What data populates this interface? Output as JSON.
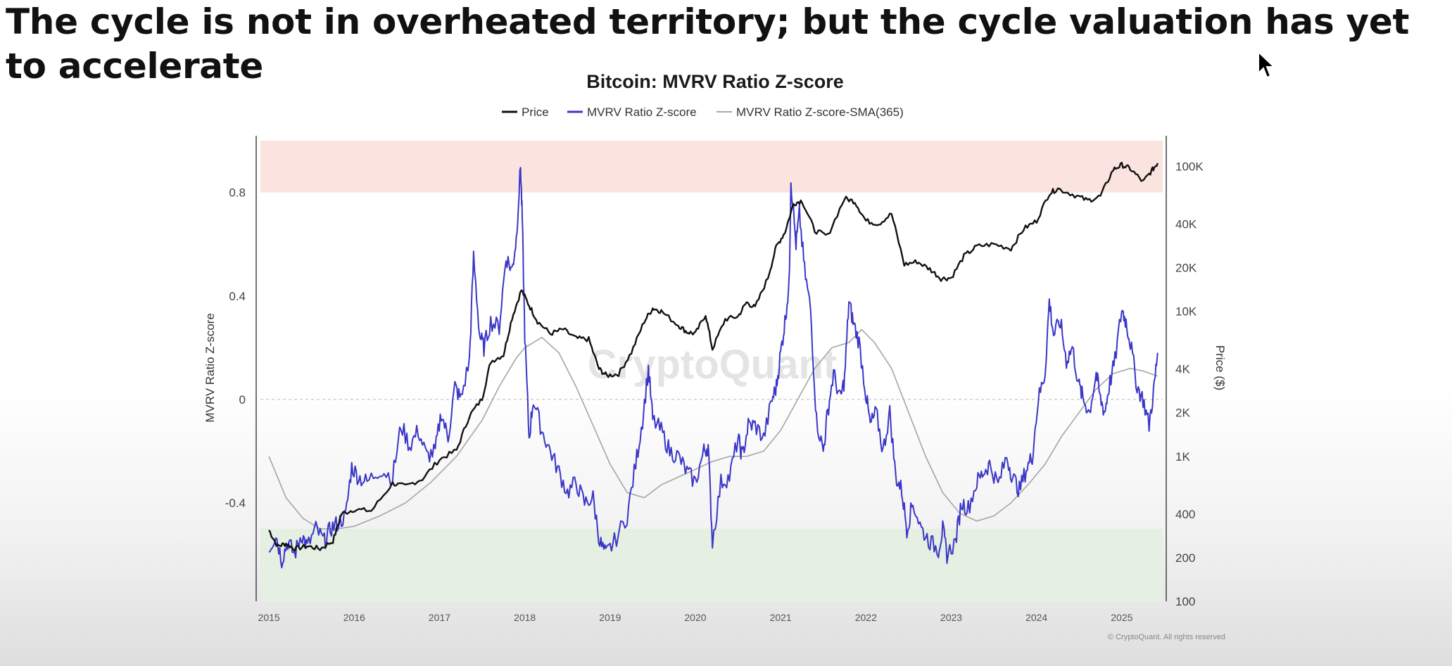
{
  "headline": "The cycle is not in overheated territory; but the cycle valuation has yet to accelerate",
  "cursor_icon": "arrow-pointer-icon",
  "watermark": "CryptoQuant",
  "copyright": "© CryptoQuant. All rights reserved",
  "chart_data": {
    "type": "line",
    "title": "Bitcoin: MVRV Ratio Z-score",
    "ylabel": "MVRV Ratio Z-score",
    "y2label": "Price ($)",
    "ylim": [
      -0.78,
      1.0
    ],
    "y2lim": [
      100,
      150000
    ],
    "y2_scale": "log",
    "xlim": [
      2014.9,
      2025.48
    ],
    "yticks": [
      "0.8",
      "0.4",
      "0",
      "-0.4"
    ],
    "ytick_values": [
      0.8,
      0.4,
      0,
      -0.4
    ],
    "y2ticks": [
      "100K",
      "40K",
      "20K",
      "10K",
      "4K",
      "2K",
      "1K",
      "400",
      "200",
      "100"
    ],
    "y2tick_values": [
      100000,
      40000,
      20000,
      10000,
      4000,
      2000,
      1000,
      400,
      200,
      100
    ],
    "xticks": [
      "2015",
      "2016",
      "2017",
      "2018",
      "2019",
      "2020",
      "2021",
      "2022",
      "2023",
      "2024",
      "2025"
    ],
    "zones": [
      {
        "name": "overheated",
        "from": 0.8,
        "to": 1.0,
        "color": "#fbe3e0"
      },
      {
        "name": "undervalued",
        "from": -0.78,
        "to": -0.5,
        "color": "#e5efe2"
      }
    ],
    "legend_position": "top-center",
    "series": [
      {
        "name": "Price",
        "axis": "right",
        "color": "#111111",
        "x": [
          2015.0,
          2015.1,
          2015.2,
          2015.3,
          2015.45,
          2015.6,
          2015.75,
          2015.85,
          2016.0,
          2016.2,
          2016.45,
          2016.6,
          2016.8,
          2017.0,
          2017.2,
          2017.35,
          2017.5,
          2017.6,
          2017.75,
          2017.85,
          2017.96,
          2018.05,
          2018.15,
          2018.3,
          2018.45,
          2018.6,
          2018.75,
          2018.87,
          2018.96,
          2019.1,
          2019.25,
          2019.4,
          2019.5,
          2019.6,
          2019.8,
          2019.9,
          2020.0,
          2020.12,
          2020.2,
          2020.35,
          2020.5,
          2020.6,
          2020.7,
          2020.85,
          2020.95,
          2021.05,
          2021.15,
          2021.25,
          2021.4,
          2021.55,
          2021.75,
          2021.87,
          2022.0,
          2022.15,
          2022.3,
          2022.45,
          2022.6,
          2022.75,
          2022.88,
          2023.0,
          2023.15,
          2023.3,
          2023.5,
          2023.7,
          2023.85,
          2024.0,
          2024.15,
          2024.25,
          2024.45,
          2024.6,
          2024.75,
          2024.9,
          2025.0,
          2025.1,
          2025.25,
          2025.35,
          2025.42
        ],
        "y": [
          310,
          240,
          250,
          230,
          240,
          230,
          260,
          400,
          430,
          420,
          650,
          620,
          700,
          950,
          1100,
          1900,
          2500,
          4500,
          5000,
          9000,
          14000,
          11000,
          8500,
          7000,
          7500,
          6500,
          6400,
          4000,
          3600,
          3700,
          5200,
          8500,
          10500,
          10000,
          8000,
          7200,
          7000,
          9500,
          5500,
          8800,
          9200,
          11500,
          10600,
          17000,
          28000,
          35000,
          55000,
          58000,
          36000,
          33000,
          60000,
          57000,
          42000,
          40000,
          47000,
          21000,
          22000,
          19500,
          16800,
          17000,
          24000,
          28000,
          29000,
          27000,
          37000,
          42000,
          65000,
          70000,
          63000,
          58000,
          62000,
          95000,
          102000,
          96000,
          78000,
          93000,
          105000
        ]
      },
      {
        "name": "MVRV Ratio Z-score",
        "axis": "left",
        "color": "#3a36c8",
        "x": [
          2015.0,
          2015.08,
          2015.15,
          2015.22,
          2015.3,
          2015.38,
          2015.45,
          2015.55,
          2015.65,
          2015.72,
          2015.8,
          2015.9,
          2015.97,
          2016.05,
          2016.15,
          2016.3,
          2016.45,
          2016.55,
          2016.65,
          2016.75,
          2016.85,
          2016.95,
          2017.02,
          2017.1,
          2017.18,
          2017.25,
          2017.35,
          2017.4,
          2017.47,
          2017.52,
          2017.6,
          2017.7,
          2017.78,
          2017.85,
          2017.9,
          2017.95,
          2017.97,
          2018.0,
          2018.05,
          2018.1,
          2018.2,
          2018.3,
          2018.4,
          2018.5,
          2018.6,
          2018.7,
          2018.8,
          2018.88,
          2018.95,
          2019.05,
          2019.2,
          2019.3,
          2019.38,
          2019.45,
          2019.5,
          2019.6,
          2019.7,
          2019.8,
          2019.9,
          2020.0,
          2020.1,
          2020.15,
          2020.2,
          2020.3,
          2020.4,
          2020.5,
          2020.55,
          2020.62,
          2020.7,
          2020.8,
          2020.9,
          2020.95,
          2021.0,
          2021.05,
          2021.1,
          2021.12,
          2021.18,
          2021.22,
          2021.28,
          2021.35,
          2021.42,
          2021.5,
          2021.55,
          2021.62,
          2021.7,
          2021.75,
          2021.8,
          2021.85,
          2021.92,
          2022.0,
          2022.05,
          2022.12,
          2022.2,
          2022.28,
          2022.35,
          2022.42,
          2022.48,
          2022.55,
          2022.65,
          2022.75,
          2022.85,
          2022.9,
          2022.95,
          2023.05,
          2023.12,
          2023.2,
          2023.3,
          2023.38,
          2023.45,
          2023.55,
          2023.65,
          2023.72,
          2023.8,
          2023.88,
          2023.95,
          2024.02,
          2024.1,
          2024.15,
          2024.2,
          2024.28,
          2024.35,
          2024.42,
          2024.5,
          2024.55,
          2024.62,
          2024.7,
          2024.75,
          2024.8,
          2024.85,
          2024.92,
          2025.0,
          2025.05,
          2025.1,
          2025.18,
          2025.25,
          2025.32,
          2025.38,
          2025.42
        ],
        "y": [
          -0.58,
          -0.52,
          -0.62,
          -0.55,
          -0.6,
          -0.52,
          -0.57,
          -0.5,
          -0.55,
          -0.5,
          -0.48,
          -0.45,
          -0.26,
          -0.3,
          -0.32,
          -0.27,
          -0.3,
          -0.1,
          -0.18,
          -0.12,
          -0.22,
          -0.2,
          -0.05,
          -0.15,
          0.05,
          0.0,
          0.15,
          0.55,
          0.25,
          0.2,
          0.3,
          0.28,
          0.55,
          0.5,
          0.62,
          0.9,
          0.7,
          0.25,
          -0.15,
          0.0,
          -0.12,
          -0.2,
          -0.28,
          -0.36,
          -0.32,
          -0.4,
          -0.38,
          -0.55,
          -0.6,
          -0.55,
          -0.45,
          -0.25,
          -0.08,
          0.12,
          -0.08,
          -0.12,
          -0.2,
          -0.22,
          -0.28,
          -0.32,
          -0.2,
          -0.18,
          -0.55,
          -0.32,
          -0.3,
          -0.15,
          -0.22,
          -0.1,
          -0.1,
          -0.15,
          0.0,
          0.05,
          0.18,
          0.3,
          0.45,
          0.85,
          0.6,
          0.72,
          0.5,
          0.35,
          -0.08,
          -0.2,
          -0.05,
          0.1,
          0.0,
          0.08,
          0.38,
          0.3,
          0.22,
          0.02,
          -0.1,
          -0.05,
          -0.2,
          -0.05,
          -0.3,
          -0.35,
          -0.5,
          -0.4,
          -0.5,
          -0.55,
          -0.58,
          -0.5,
          -0.6,
          -0.55,
          -0.4,
          -0.42,
          -0.32,
          -0.28,
          -0.25,
          -0.33,
          -0.22,
          -0.3,
          -0.35,
          -0.27,
          -0.22,
          0.0,
          0.1,
          0.38,
          0.25,
          0.3,
          0.15,
          0.2,
          0.05,
          0.0,
          -0.05,
          0.1,
          0.0,
          -0.05,
          0.05,
          0.15,
          0.35,
          0.3,
          0.22,
          0.05,
          0.0,
          -0.1,
          0.05,
          0.18
        ]
      },
      {
        "name": "MVRV Ratio Z-score-SMA(365)",
        "axis": "left",
        "color": "#9a9a9a",
        "x": [
          2015.0,
          2015.2,
          2015.4,
          2015.6,
          2015.8,
          2016.0,
          2016.3,
          2016.6,
          2016.9,
          2017.2,
          2017.5,
          2017.7,
          2017.9,
          2018.0,
          2018.2,
          2018.4,
          2018.6,
          2018.8,
          2019.0,
          2019.2,
          2019.4,
          2019.6,
          2019.8,
          2020.0,
          2020.2,
          2020.4,
          2020.6,
          2020.8,
          2021.0,
          2021.2,
          2021.4,
          2021.6,
          2021.8,
          2021.95,
          2022.1,
          2022.3,
          2022.5,
          2022.7,
          2022.9,
          2023.1,
          2023.3,
          2023.5,
          2023.7,
          2023.9,
          2024.1,
          2024.3,
          2024.5,
          2024.7,
          2024.9,
          2025.1,
          2025.25,
          2025.42
        ],
        "y": [
          -0.22,
          -0.38,
          -0.46,
          -0.5,
          -0.5,
          -0.49,
          -0.45,
          -0.4,
          -0.32,
          -0.22,
          -0.08,
          0.05,
          0.16,
          0.2,
          0.24,
          0.18,
          0.05,
          -0.1,
          -0.25,
          -0.36,
          -0.38,
          -0.33,
          -0.3,
          -0.27,
          -0.24,
          -0.22,
          -0.22,
          -0.2,
          -0.12,
          0.0,
          0.12,
          0.2,
          0.22,
          0.27,
          0.22,
          0.12,
          -0.05,
          -0.22,
          -0.36,
          -0.44,
          -0.47,
          -0.45,
          -0.4,
          -0.33,
          -0.25,
          -0.14,
          -0.05,
          0.04,
          0.1,
          0.12,
          0.11,
          0.09
        ]
      }
    ]
  }
}
